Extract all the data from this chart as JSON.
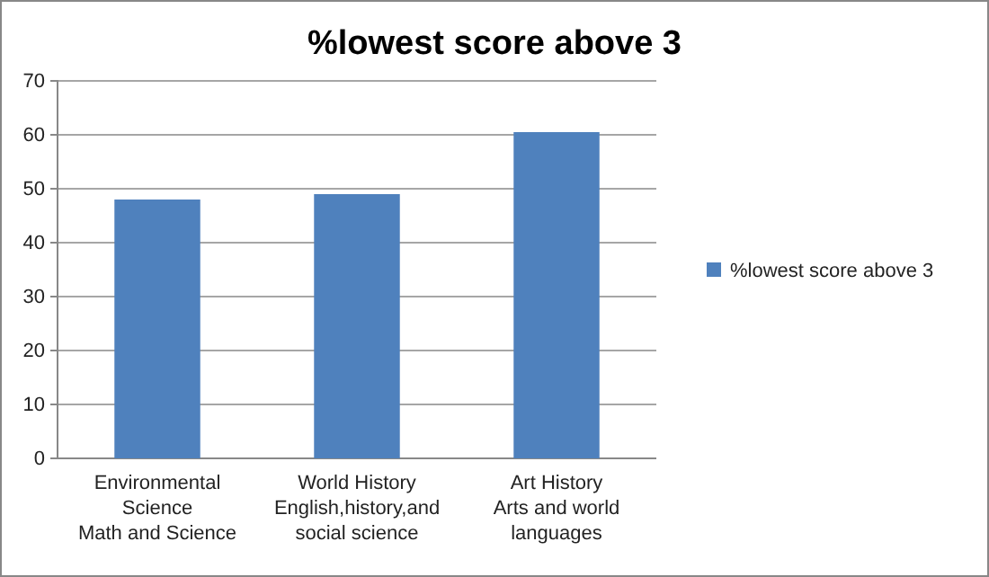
{
  "chart_data": {
    "type": "bar",
    "title": "%lowest score above 3",
    "categories": [
      "Environmental\nScience\nMath and Science",
      "World History\nEnglish,history,and\nsocial science",
      "Art History\nArts and world\nlanguages"
    ],
    "series": [
      {
        "name": "%lowest score above 3",
        "color": "#4f81bd",
        "values": [
          48,
          49,
          60.5
        ]
      }
    ],
    "ylim": [
      0,
      70
    ],
    "yticks": [
      0,
      10,
      20,
      30,
      40,
      50,
      60,
      70
    ],
    "grid": "y",
    "legend": "right"
  }
}
